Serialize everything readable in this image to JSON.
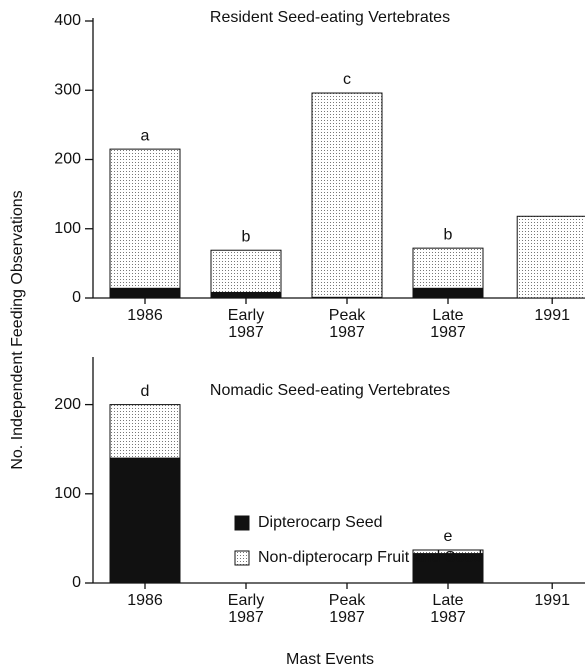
{
  "chart_data": [
    {
      "type": "stacked_bar",
      "title": "Resident Seed-eating Vertebrates",
      "y_label": "No. Independent Feeding Observations",
      "categories": [
        "1986",
        "Early 1987",
        "Peak 1987",
        "Late 1987",
        "1991"
      ],
      "series": [
        {
          "name": "Dipterocarp Seed",
          "color": "#111111",
          "values": [
            14,
            8,
            1,
            14,
            0
          ]
        },
        {
          "name": "Non-dipterocarp Fruit and Seed",
          "color": "#e4e4e4",
          "values": [
            201,
            61,
            295,
            58,
            118
          ]
        }
      ],
      "value_annotations": [
        "a",
        "b",
        "c",
        "b",
        null
      ],
      "ylim": [
        0,
        400
      ],
      "yticks": [
        0,
        100,
        200,
        300,
        400
      ],
      "legend": false
    },
    {
      "type": "stacked_bar",
      "title": "Nomadic Seed-eating Vertebrates",
      "x_label": "Mast Events",
      "categories": [
        "1986",
        "Early 1987",
        "Peak 1987",
        "Late 1987",
        "1991"
      ],
      "series": [
        {
          "name": "Dipterocarp Seed",
          "color": "#111111",
          "values": [
            140,
            0,
            0,
            33,
            0
          ]
        },
        {
          "name": "Non-dipterocarp Fruit and Seed",
          "color": "#e4e4e4",
          "values": [
            60,
            0,
            0,
            4,
            0
          ]
        }
      ],
      "value_annotations": [
        "d",
        null,
        null,
        "e",
        null
      ],
      "ylim": [
        0,
        250
      ],
      "yticks": [
        0,
        100,
        200
      ],
      "legend": true
    }
  ]
}
